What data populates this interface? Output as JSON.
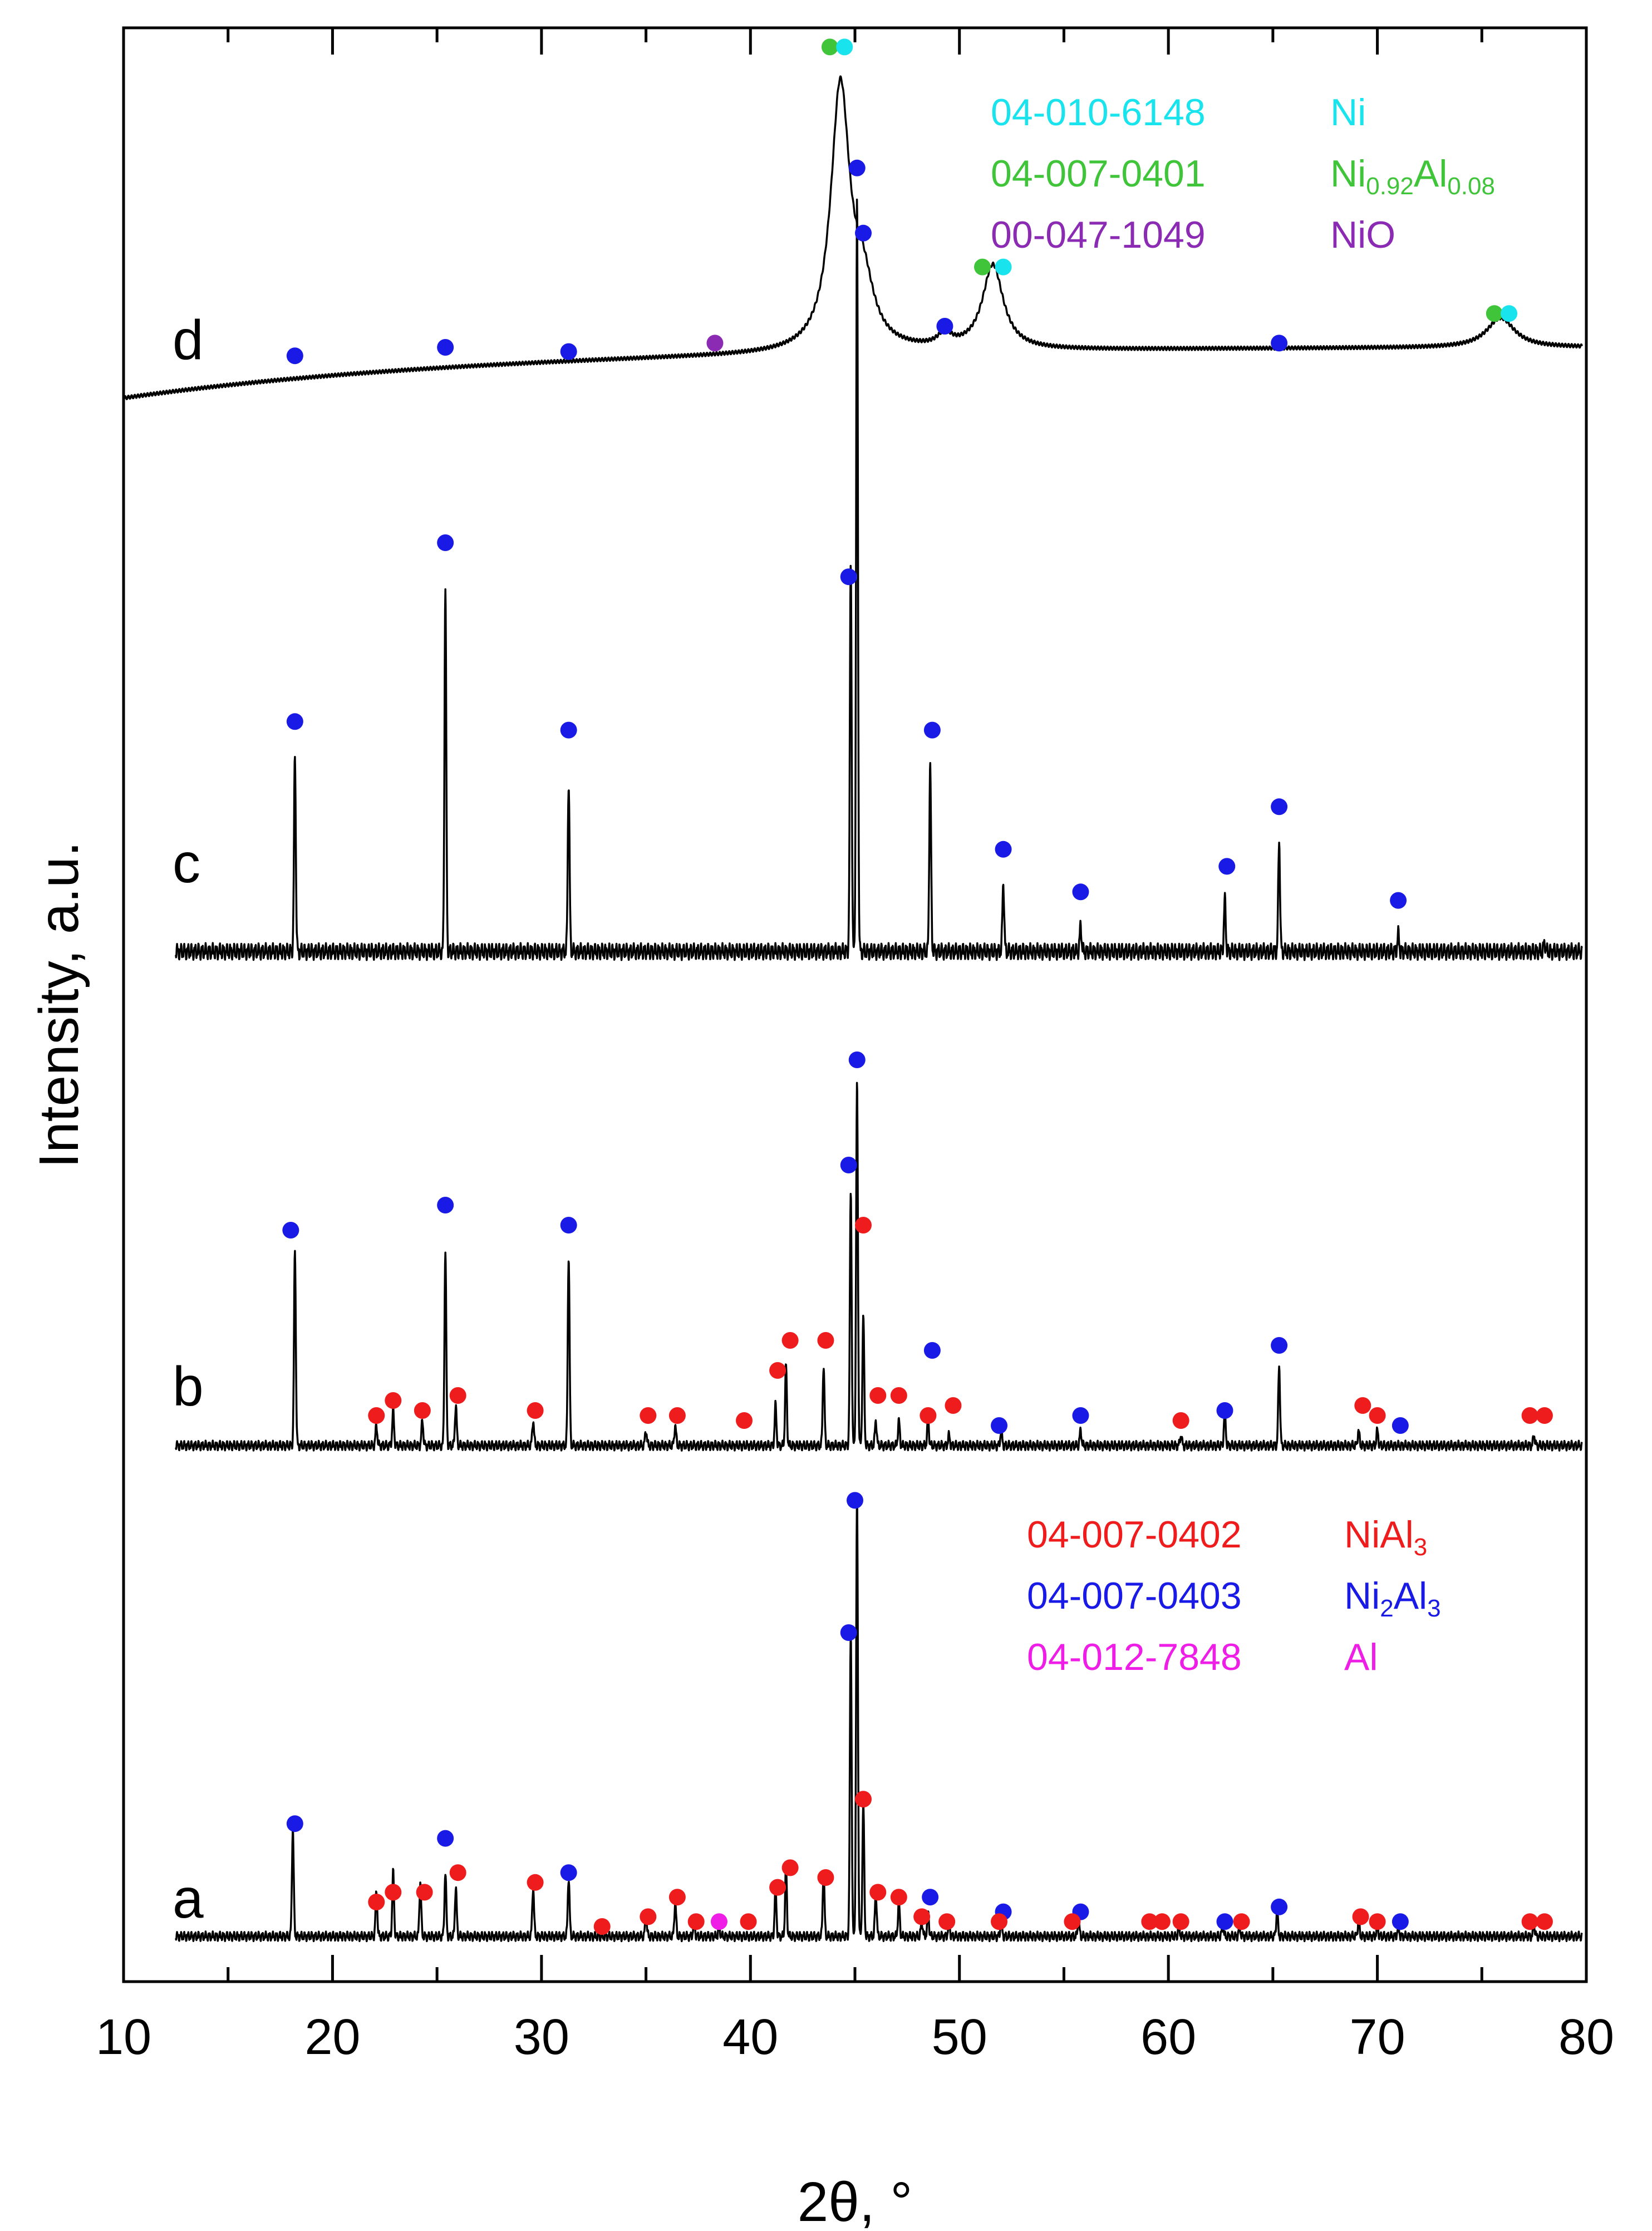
{
  "chart_data": {
    "type": "line",
    "title": "",
    "xlabel": "2θ, °",
    "ylabel": "Intensity, a.u.",
    "xlim": [
      10,
      80
    ],
    "xticks": [
      10,
      20,
      30,
      40,
      50,
      60,
      70,
      80
    ],
    "grid": false,
    "colors": {
      "NiAl3": "#ee1c1c",
      "Ni2Al3": "#1a1ae6",
      "Al": "#ee1ee6",
      "Ni": "#19e4ee",
      "Ni0.92Al0.08": "#3fc43a",
      "NiO": "#8b2bb3"
    },
    "legends": [
      {
        "placement": "top-right",
        "entries": [
          {
            "code": "04-010-6148",
            "phase": "Ni",
            "phase_html": "Ni",
            "color": "#19e4ee"
          },
          {
            "code": "04-007-0401",
            "phase": "Ni0.92Al0.08",
            "phase_html": "Ni<tspan class='sub' dy='14'>0.92</tspan><tspan dy='-14'>Al</tspan><tspan class='sub' dy='14'>0.08</tspan>",
            "color": "#3fc43a"
          },
          {
            "code": "00-047-1049",
            "phase": "NiO",
            "phase_html": "NiO",
            "color": "#8b2bb3"
          }
        ]
      },
      {
        "placement": "bottom-right",
        "entries": [
          {
            "code": "04-007-0402",
            "phase": "NiAl3",
            "phase_html": "NiAl<tspan class='sub' dy='14'>3</tspan>",
            "color": "#ee1c1c"
          },
          {
            "code": "04-007-0403",
            "phase": "Ni2Al3",
            "phase_html": "Ni<tspan class='sub' dy='14'>2</tspan><tspan dy='-14'>Al</tspan><tspan class='sub' dy='14'>3</tspan>",
            "color": "#1a1ae6"
          },
          {
            "code": "04-012-7848",
            "phase": "Al",
            "phase_html": "Al",
            "color": "#ee1ee6"
          }
        ]
      }
    ],
    "series": [
      {
        "name": "a",
        "baseline": 0.03,
        "peaks": [
          {
            "x": 18.1,
            "h": 0.22
          },
          {
            "x": 22.1,
            "h": 0.09
          },
          {
            "x": 22.9,
            "h": 0.13
          },
          {
            "x": 24.2,
            "h": 0.11
          },
          {
            "x": 25.4,
            "h": 0.13
          },
          {
            "x": 25.9,
            "h": 0.1
          },
          {
            "x": 29.6,
            "h": 0.1
          },
          {
            "x": 31.3,
            "h": 0.12
          },
          {
            "x": 35.0,
            "h": 0.04
          },
          {
            "x": 36.4,
            "h": 0.07
          },
          {
            "x": 37.3,
            "h": 0.03
          },
          {
            "x": 38.5,
            "h": 0.02
          },
          {
            "x": 41.2,
            "h": 0.1
          },
          {
            "x": 41.7,
            "h": 0.14
          },
          {
            "x": 43.5,
            "h": 0.13
          },
          {
            "x": 44.8,
            "h": 0.62
          },
          {
            "x": 45.1,
            "h": 0.9
          },
          {
            "x": 45.4,
            "h": 0.27
          },
          {
            "x": 46.0,
            "h": 0.09
          },
          {
            "x": 47.1,
            "h": 0.07
          },
          {
            "x": 48.2,
            "h": 0.03
          },
          {
            "x": 48.5,
            "h": 0.05
          },
          {
            "x": 49.5,
            "h": 0.03
          },
          {
            "x": 52.0,
            "h": 0.03
          },
          {
            "x": 55.7,
            "h": 0.03
          },
          {
            "x": 60.5,
            "h": 0.02
          },
          {
            "x": 62.6,
            "h": 0.02
          },
          {
            "x": 63.4,
            "h": 0.02
          },
          {
            "x": 65.2,
            "h": 0.05
          },
          {
            "x": 69.1,
            "h": 0.03
          },
          {
            "x": 70.0,
            "h": 0.02
          },
          {
            "x": 71.0,
            "h": 0.02
          },
          {
            "x": 77.5,
            "h": 0.02
          }
        ],
        "markers": [
          {
            "x": 18.2,
            "phase": "Ni2Al3",
            "y": 0.26
          },
          {
            "x": 25.4,
            "phase": "Ni2Al3",
            "y": 0.23
          },
          {
            "x": 31.3,
            "phase": "Ni2Al3",
            "y": 0.16
          },
          {
            "x": 44.7,
            "phase": "Ni2Al3",
            "y": 0.65
          },
          {
            "x": 45.0,
            "phase": "Ni2Al3",
            "y": 0.92
          },
          {
            "x": 48.6,
            "phase": "Ni2Al3",
            "y": 0.11
          },
          {
            "x": 52.1,
            "phase": "Ni2Al3",
            "y": 0.08
          },
          {
            "x": 55.8,
            "phase": "Ni2Al3",
            "y": 0.08
          },
          {
            "x": 62.7,
            "phase": "Ni2Al3",
            "y": 0.06
          },
          {
            "x": 65.3,
            "phase": "Ni2Al3",
            "y": 0.09
          },
          {
            "x": 71.1,
            "phase": "Ni2Al3",
            "y": 0.06
          },
          {
            "x": 22.1,
            "phase": "NiAl3",
            "y": 0.1
          },
          {
            "x": 22.9,
            "phase": "NiAl3",
            "y": 0.12
          },
          {
            "x": 24.4,
            "phase": "NiAl3",
            "y": 0.12
          },
          {
            "x": 26.0,
            "phase": "NiAl3",
            "y": 0.16
          },
          {
            "x": 29.7,
            "phase": "NiAl3",
            "y": 0.14
          },
          {
            "x": 32.9,
            "phase": "NiAl3",
            "y": 0.05
          },
          {
            "x": 35.1,
            "phase": "NiAl3",
            "y": 0.07
          },
          {
            "x": 36.5,
            "phase": "NiAl3",
            "y": 0.11
          },
          {
            "x": 37.4,
            "phase": "NiAl3",
            "y": 0.06
          },
          {
            "x": 39.9,
            "phase": "NiAl3",
            "y": 0.06
          },
          {
            "x": 41.3,
            "phase": "NiAl3",
            "y": 0.13
          },
          {
            "x": 41.9,
            "phase": "NiAl3",
            "y": 0.17
          },
          {
            "x": 43.6,
            "phase": "NiAl3",
            "y": 0.15
          },
          {
            "x": 45.4,
            "phase": "NiAl3",
            "y": 0.31
          },
          {
            "x": 46.1,
            "phase": "NiAl3",
            "y": 0.12
          },
          {
            "x": 47.1,
            "phase": "NiAl3",
            "y": 0.11
          },
          {
            "x": 48.2,
            "phase": "NiAl3",
            "y": 0.07
          },
          {
            "x": 49.4,
            "phase": "NiAl3",
            "y": 0.06
          },
          {
            "x": 51.9,
            "phase": "NiAl3",
            "y": 0.06
          },
          {
            "x": 55.4,
            "phase": "NiAl3",
            "y": 0.06
          },
          {
            "x": 59.1,
            "phase": "NiAl3",
            "y": 0.06
          },
          {
            "x": 59.7,
            "phase": "NiAl3",
            "y": 0.06
          },
          {
            "x": 60.6,
            "phase": "NiAl3",
            "y": 0.06
          },
          {
            "x": 63.5,
            "phase": "NiAl3",
            "y": 0.06
          },
          {
            "x": 69.2,
            "phase": "NiAl3",
            "y": 0.07
          },
          {
            "x": 70.0,
            "phase": "NiAl3",
            "y": 0.06
          },
          {
            "x": 77.3,
            "phase": "NiAl3",
            "y": 0.06
          },
          {
            "x": 78.0,
            "phase": "NiAl3",
            "y": 0.06
          },
          {
            "x": 38.5,
            "phase": "Al",
            "y": 0.06
          }
        ]
      },
      {
        "name": "b",
        "baseline": 0.02,
        "peaks": [
          {
            "x": 18.2,
            "h": 0.39
          },
          {
            "x": 22.1,
            "h": 0.04
          },
          {
            "x": 22.9,
            "h": 0.07
          },
          {
            "x": 24.3,
            "h": 0.05
          },
          {
            "x": 25.4,
            "h": 0.39
          },
          {
            "x": 25.9,
            "h": 0.08
          },
          {
            "x": 29.6,
            "h": 0.05
          },
          {
            "x": 31.3,
            "h": 0.38
          },
          {
            "x": 35.0,
            "h": 0.03
          },
          {
            "x": 36.4,
            "h": 0.04
          },
          {
            "x": 41.2,
            "h": 0.08
          },
          {
            "x": 41.7,
            "h": 0.16
          },
          {
            "x": 43.5,
            "h": 0.16
          },
          {
            "x": 44.8,
            "h": 0.51
          },
          {
            "x": 45.1,
            "h": 0.72
          },
          {
            "x": 45.4,
            "h": 0.26
          },
          {
            "x": 46.0,
            "h": 0.05
          },
          {
            "x": 47.1,
            "h": 0.05
          },
          {
            "x": 48.5,
            "h": 0.05
          },
          {
            "x": 49.5,
            "h": 0.02
          },
          {
            "x": 52.0,
            "h": 0.03
          },
          {
            "x": 55.8,
            "h": 0.03
          },
          {
            "x": 60.6,
            "h": 0.02
          },
          {
            "x": 62.7,
            "h": 0.07
          },
          {
            "x": 65.3,
            "h": 0.16
          },
          {
            "x": 69.1,
            "h": 0.03
          },
          {
            "x": 70.0,
            "h": 0.03
          },
          {
            "x": 77.5,
            "h": 0.02
          }
        ],
        "markers": [
          {
            "x": 18.0,
            "phase": "Ni2Al3",
            "y": 0.45
          },
          {
            "x": 25.4,
            "phase": "Ni2Al3",
            "y": 0.5
          },
          {
            "x": 31.3,
            "phase": "Ni2Al3",
            "y": 0.46
          },
          {
            "x": 44.7,
            "phase": "Ni2Al3",
            "y": 0.58
          },
          {
            "x": 45.1,
            "phase": "Ni2Al3",
            "y": 0.79
          },
          {
            "x": 48.7,
            "phase": "Ni2Al3",
            "y": 0.21
          },
          {
            "x": 51.9,
            "phase": "Ni2Al3",
            "y": 0.06
          },
          {
            "x": 55.8,
            "phase": "Ni2Al3",
            "y": 0.08
          },
          {
            "x": 62.7,
            "phase": "Ni2Al3",
            "y": 0.09
          },
          {
            "x": 65.3,
            "phase": "Ni2Al3",
            "y": 0.22
          },
          {
            "x": 71.1,
            "phase": "Ni2Al3",
            "y": 0.06
          },
          {
            "x": 22.1,
            "phase": "NiAl3",
            "y": 0.08
          },
          {
            "x": 22.9,
            "phase": "NiAl3",
            "y": 0.11
          },
          {
            "x": 24.3,
            "phase": "NiAl3",
            "y": 0.09
          },
          {
            "x": 26.0,
            "phase": "NiAl3",
            "y": 0.12
          },
          {
            "x": 29.7,
            "phase": "NiAl3",
            "y": 0.09
          },
          {
            "x": 35.1,
            "phase": "NiAl3",
            "y": 0.08
          },
          {
            "x": 36.5,
            "phase": "NiAl3",
            "y": 0.08
          },
          {
            "x": 39.7,
            "phase": "NiAl3",
            "y": 0.07
          },
          {
            "x": 41.3,
            "phase": "NiAl3",
            "y": 0.17
          },
          {
            "x": 41.9,
            "phase": "NiAl3",
            "y": 0.23
          },
          {
            "x": 43.6,
            "phase": "NiAl3",
            "y": 0.23
          },
          {
            "x": 45.4,
            "phase": "NiAl3",
            "y": 0.46
          },
          {
            "x": 46.1,
            "phase": "NiAl3",
            "y": 0.12
          },
          {
            "x": 47.1,
            "phase": "NiAl3",
            "y": 0.12
          },
          {
            "x": 48.5,
            "phase": "NiAl3",
            "y": 0.08
          },
          {
            "x": 49.7,
            "phase": "NiAl3",
            "y": 0.1
          },
          {
            "x": 60.6,
            "phase": "NiAl3",
            "y": 0.07
          },
          {
            "x": 69.3,
            "phase": "NiAl3",
            "y": 0.1
          },
          {
            "x": 70.0,
            "phase": "NiAl3",
            "y": 0.08
          },
          {
            "x": 77.3,
            "phase": "NiAl3",
            "y": 0.08
          },
          {
            "x": 78.0,
            "phase": "NiAl3",
            "y": 0.08
          }
        ]
      },
      {
        "name": "c",
        "baseline": 0.02,
        "peaks": [
          {
            "x": 18.2,
            "h": 0.23
          },
          {
            "x": 25.4,
            "h": 0.43
          },
          {
            "x": 31.3,
            "h": 0.2
          },
          {
            "x": 44.8,
            "h": 0.46
          },
          {
            "x": 45.1,
            "h": 0.88
          },
          {
            "x": 48.6,
            "h": 0.22
          },
          {
            "x": 52.1,
            "h": 0.08
          },
          {
            "x": 55.8,
            "h": 0.03
          },
          {
            "x": 62.7,
            "h": 0.06
          },
          {
            "x": 65.3,
            "h": 0.13
          },
          {
            "x": 71.0,
            "h": 0.02
          },
          {
            "x": 78.0,
            "h": 0.01
          }
        ],
        "markers": [
          {
            "x": 18.2,
            "phase": "Ni2Al3",
            "y": 0.29
          },
          {
            "x": 25.4,
            "phase": "Ni2Al3",
            "y": 0.5
          },
          {
            "x": 31.3,
            "phase": "Ni2Al3",
            "y": 0.28
          },
          {
            "x": 44.7,
            "phase": "Ni2Al3",
            "y": 0.46
          },
          {
            "x": 45.1,
            "phase": "Ni2Al3",
            "y": 0.94
          },
          {
            "x": 48.7,
            "phase": "Ni2Al3",
            "y": 0.28
          },
          {
            "x": 52.1,
            "phase": "Ni2Al3",
            "y": 0.14
          },
          {
            "x": 55.8,
            "phase": "Ni2Al3",
            "y": 0.09
          },
          {
            "x": 62.8,
            "phase": "Ni2Al3",
            "y": 0.12
          },
          {
            "x": 65.3,
            "phase": "Ni2Al3",
            "y": 0.19
          },
          {
            "x": 71.0,
            "phase": "Ni2Al3",
            "y": 0.08
          }
        ]
      },
      {
        "name": "d",
        "baseline_start": -0.02,
        "baseline_end": 0.1,
        "broad_peaks": [
          {
            "x": 44.3,
            "h": 0.62,
            "w": 0.55
          },
          {
            "x": 45.4,
            "h": 0.13,
            "w": 0.6
          },
          {
            "x": 49.3,
            "h": 0.03,
            "w": 0.4
          },
          {
            "x": 51.6,
            "h": 0.2,
            "w": 0.6
          },
          {
            "x": 75.9,
            "h": 0.07,
            "w": 0.8
          }
        ],
        "markers": [
          {
            "x": 18.2,
            "phase": "Ni2Al3",
            "y": 0.08
          },
          {
            "x": 25.4,
            "phase": "Ni2Al3",
            "y": 0.1
          },
          {
            "x": 31.3,
            "phase": "Ni2Al3",
            "y": 0.09
          },
          {
            "x": 45.4,
            "phase": "Ni2Al3",
            "y": 0.37
          },
          {
            "x": 49.3,
            "phase": "Ni2Al3",
            "y": 0.15
          },
          {
            "x": 65.3,
            "phase": "Ni2Al3",
            "y": 0.11
          },
          {
            "x": 38.3,
            "phase": "NiO",
            "y": 0.11
          },
          {
            "x": 43.8,
            "phase": "Ni0.92Al0.08",
            "y": 0.81
          },
          {
            "x": 51.1,
            "phase": "Ni0.92Al0.08",
            "y": 0.29
          },
          {
            "x": 75.6,
            "phase": "Ni0.92Al0.08",
            "y": 0.18
          },
          {
            "x": 44.5,
            "phase": "Ni",
            "y": 0.81
          },
          {
            "x": 52.1,
            "phase": "Ni",
            "y": 0.29
          },
          {
            "x": 76.3,
            "phase": "Ni",
            "y": 0.18
          }
        ]
      }
    ],
    "trace_labels": [
      "a",
      "b",
      "c",
      "d"
    ]
  }
}
